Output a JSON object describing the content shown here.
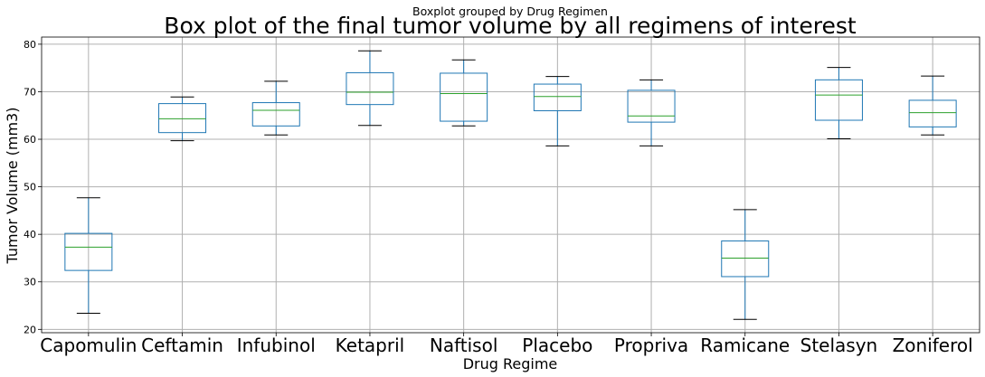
{
  "chart_data": {
    "type": "box",
    "suptitle": "Boxplot grouped by Drug Regimen",
    "title": "Box plot of the final tumor volume  by all regimens of interest",
    "xlabel": "Drug Regime",
    "ylabel": "Tumor Volume (mm3)",
    "ylim": [
      19.3,
      81.5
    ],
    "yticks": [
      20,
      30,
      40,
      50,
      60,
      70,
      80
    ],
    "grid": true,
    "categories": [
      "Capomulin",
      "Ceftamin",
      "Infubinol",
      "Ketapril",
      "Naftisol",
      "Placebo",
      "Propriva",
      "Ramicane",
      "Stelasyn",
      "Zoniferol"
    ],
    "boxes": [
      {
        "whislo": 23.4,
        "q1": 32.4,
        "med": 37.3,
        "q3": 40.2,
        "whishi": 47.7
      },
      {
        "whislo": 59.7,
        "q1": 61.4,
        "med": 64.3,
        "q3": 67.5,
        "whishi": 68.9
      },
      {
        "whislo": 60.9,
        "q1": 62.8,
        "med": 66.1,
        "q3": 67.7,
        "whishi": 72.2
      },
      {
        "whislo": 62.9,
        "q1": 67.3,
        "med": 69.9,
        "q3": 74.0,
        "whishi": 78.6
      },
      {
        "whislo": 62.8,
        "q1": 63.8,
        "med": 69.6,
        "q3": 73.9,
        "whishi": 76.7
      },
      {
        "whislo": 58.6,
        "q1": 66.0,
        "med": 69.0,
        "q3": 71.6,
        "whishi": 73.2
      },
      {
        "whislo": 58.6,
        "q1": 63.6,
        "med": 64.9,
        "q3": 70.3,
        "whishi": 72.5
      },
      {
        "whislo": 22.1,
        "q1": 31.1,
        "med": 35.0,
        "q3": 38.6,
        "whishi": 45.2
      },
      {
        "whislo": 60.1,
        "q1": 64.0,
        "med": 69.3,
        "q3": 72.5,
        "whishi": 75.1
      },
      {
        "whislo": 60.9,
        "q1": 62.6,
        "med": 65.6,
        "q3": 68.2,
        "whishi": 73.3
      }
    ],
    "colors": {
      "box": "#1f77b4",
      "median": "#2ca02c",
      "cap": "#000000",
      "grid": "#b0b0b0"
    }
  }
}
